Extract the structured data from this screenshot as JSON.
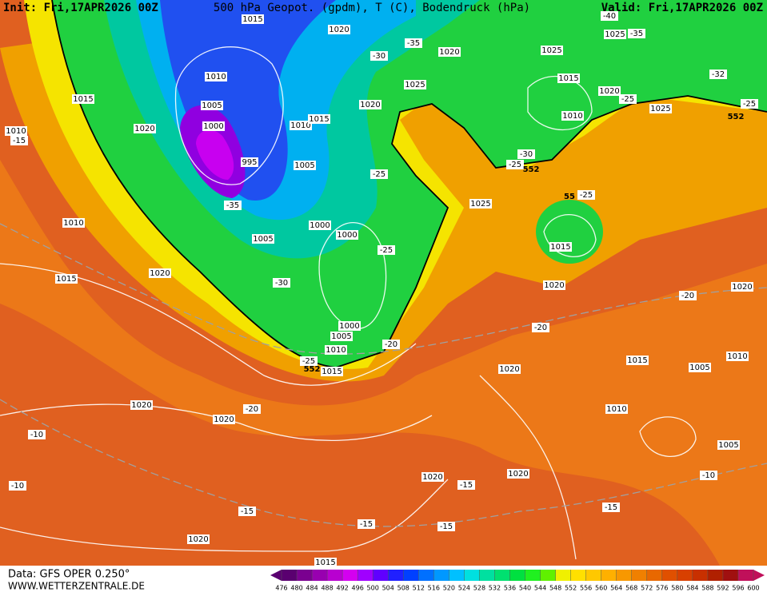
{
  "header": {
    "init": "Init: Fri,17APR2026 00Z",
    "title": "500 hPa Geopot. (gpdm), T (C), Bodendruck (hPa)",
    "valid": "Valid: Fri,17APR2026 00Z"
  },
  "footer": {
    "source": "Data: GFS OPER 0.250°",
    "site": "WWW.WETTERZENTRALE.DE"
  },
  "isobar_labels": [
    "1015",
    "1020",
    "1020",
    "1025",
    "1025",
    "1015",
    "1025",
    "1020",
    "1025",
    "1010",
    "1020",
    "1015",
    "1010",
    "1005",
    "1000",
    "995",
    "1010",
    "1015",
    "1005",
    "1020",
    "1010",
    "1010",
    "1000",
    "1000",
    "1005",
    "1015",
    "1020",
    "1025",
    "1015",
    "1020",
    "1020",
    "1000",
    "1005",
    "1010",
    "1015",
    "1020",
    "1015",
    "1005",
    "1010",
    "1020",
    "1020",
    "1010",
    "1005",
    "1020",
    "1020",
    "1020",
    "1015"
  ],
  "temperature_labels": [
    "-40",
    "-35",
    "-35",
    "-30",
    "-32",
    "-25",
    "-25",
    "-15",
    "-35",
    "-25",
    "-30",
    "-25",
    "-25",
    "-25",
    "-30",
    "-20",
    "-20",
    "-25",
    "-20",
    "-20",
    "-10",
    "-10",
    "-15",
    "-10",
    "-15",
    "-15",
    "-15",
    "-15"
  ],
  "geopotential_labels": [
    "552",
    "552",
    "55",
    "552"
  ],
  "colorbar": {
    "ticks": [
      476,
      480,
      484,
      488,
      492,
      496,
      500,
      504,
      508,
      512,
      516,
      520,
      524,
      528,
      532,
      536,
      540,
      544,
      548,
      552,
      556,
      560,
      564,
      568,
      572,
      576,
      580,
      584,
      588,
      592,
      596,
      600
    ],
    "colors": [
      "#5a0070",
      "#7a0090",
      "#9800b0",
      "#b800d0",
      "#d400f0",
      "#a000ff",
      "#6000ff",
      "#2020ff",
      "#0040ff",
      "#0070ff",
      "#0098ff",
      "#00c0ff",
      "#00e0e0",
      "#00e0a0",
      "#00e070",
      "#00e040",
      "#20f020",
      "#60f000",
      "#f0f000",
      "#ffe000",
      "#ffc800",
      "#ffb000",
      "#f89800",
      "#f08000",
      "#e86800",
      "#e05000",
      "#d84000",
      "#c83000",
      "#b02000",
      "#a01010",
      "#c0105a"
    ]
  }
}
